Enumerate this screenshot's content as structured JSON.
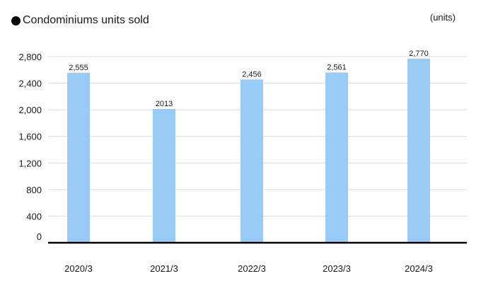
{
  "chart_data": {
    "type": "bar",
    "title": "Condominiums units sold",
    "unit_label": "(units)",
    "categories": [
      "2020/3",
      "2021/3",
      "2022/3",
      "2023/3",
      "2024/3"
    ],
    "values": [
      2555,
      2013,
      2456,
      2561,
      2770
    ],
    "data_labels": [
      "2,555",
      "2013",
      "2,456",
      "2,561",
      "2,770"
    ],
    "y_ticks": [
      0,
      400,
      800,
      1200,
      1600,
      2000,
      2400,
      2800
    ],
    "y_tick_labels": [
      "0",
      "400",
      "800",
      "1,200",
      "1,600",
      "2,000",
      "2,400",
      "2,800"
    ],
    "ylim": [
      0,
      2800
    ],
    "xlabel": "",
    "ylabel": "",
    "grid": true,
    "legend": false,
    "colors": {
      "bar": "#99cbf7",
      "grid": "#d9d9d9",
      "axis": "#000000",
      "text": "#1a1a1a"
    }
  }
}
